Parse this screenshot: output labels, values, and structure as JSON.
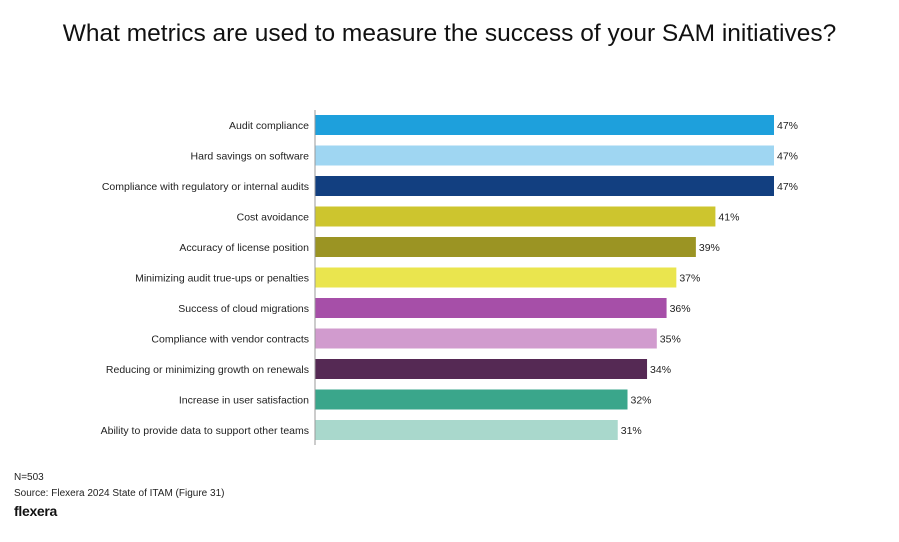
{
  "chart_data": {
    "type": "bar",
    "orientation": "horizontal",
    "title": "What metrics are used to measure the success of your SAM initiatives?",
    "categories": [
      "Audit compliance",
      "Hard savings on software",
      "Compliance with regulatory or internal audits",
      "Cost avoidance",
      "Accuracy of license position",
      "Minimizing audit true-ups or penalties",
      "Success of cloud migrations",
      "Compliance with vendor contracts",
      "Reducing or minimizing growth on renewals",
      "Increase in user satisfaction",
      "Ability to provide data to support other teams"
    ],
    "values": [
      47,
      47,
      47,
      41,
      39,
      37,
      36,
      35,
      34,
      32,
      31
    ],
    "value_labels": [
      "47%",
      "47%",
      "47%",
      "41%",
      "39%",
      "37%",
      "36%",
      "35%",
      "34%",
      "32%",
      "31%"
    ],
    "colors": [
      "#1ea0dc",
      "#9fd6f2",
      "#123f80",
      "#cdc52e",
      "#9b9423",
      "#eae54e",
      "#a64fa8",
      "#d19bce",
      "#552954",
      "#3aa68b",
      "#a9d8cc"
    ],
    "xlim": [
      0,
      47
    ],
    "grid": false,
    "legend": "none"
  },
  "footer": {
    "n": "N=503",
    "source": "Source: Flexera 2024 State of ITAM (Figure 31)",
    "brand": "flexera"
  }
}
